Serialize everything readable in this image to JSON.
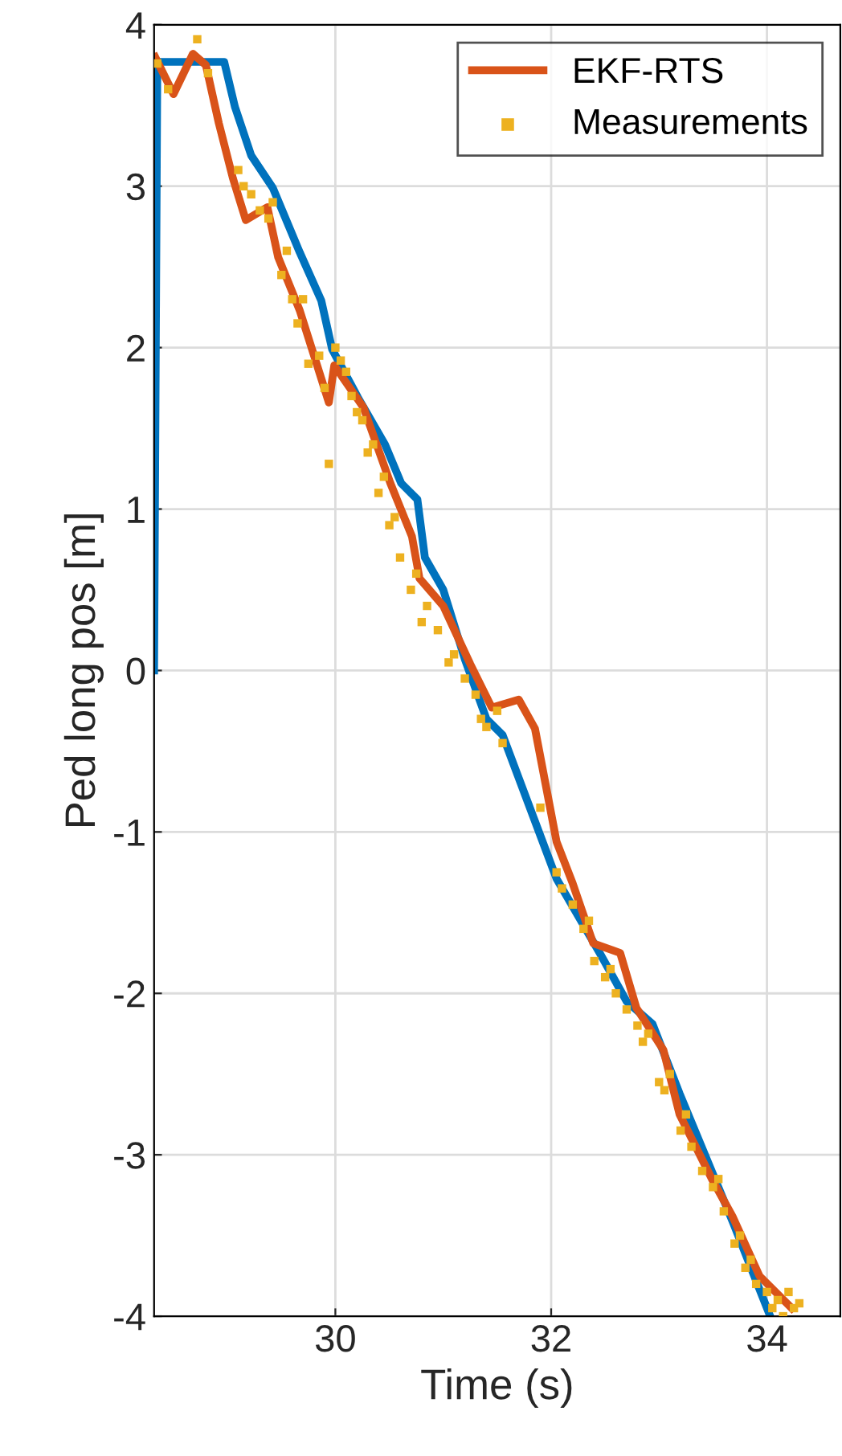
{
  "chart_data": {
    "type": "line",
    "xlabel": "Time (s)",
    "ylabel": "Ped long pos [m]",
    "xlim": [
      28.32,
      34.68
    ],
    "xticks": [
      30,
      32,
      34
    ],
    "ylim": [
      -4,
      4
    ],
    "yticks": [
      -4,
      -3,
      -2,
      -1,
      0,
      1,
      2,
      3,
      4
    ],
    "grid": true,
    "legend": "top right",
    "series": [
      {
        "color": "#0072bd",
        "x": [
          28.32,
          28.35,
          28.97,
          29.07,
          29.22,
          29.42,
          29.67,
          29.87,
          29.97,
          30.21,
          30.46,
          30.61,
          30.76,
          30.83,
          31.0,
          31.2,
          31.4,
          31.55,
          32.05,
          32.45,
          32.7,
          32.94,
          33.19,
          33.68,
          34.03
        ],
        "values": [
          0,
          3.77,
          3.77,
          3.49,
          3.19,
          2.99,
          2.59,
          2.29,
          1.99,
          1.69,
          1.4,
          1.16,
          1.06,
          0.7,
          0.5,
          0.07,
          -0.3,
          -0.4,
          -1.29,
          -1.75,
          -2.05,
          -2.19,
          -2.62,
          -3.41,
          -4.0
        ]
      },
      {
        "name": "EKF-RTS",
        "color": "#d95319",
        "x": [
          28.33,
          28.5,
          28.68,
          28.8,
          28.92,
          29.05,
          29.17,
          29.37,
          29.47,
          29.67,
          29.94,
          29.99,
          30.26,
          30.51,
          30.71,
          30.78,
          31.0,
          31.25,
          31.45,
          31.7,
          31.85,
          32.05,
          32.2,
          32.39,
          32.64,
          32.79,
          33.04,
          33.19,
          33.49,
          33.68,
          33.93,
          34.23
        ],
        "values": [
          3.8,
          3.57,
          3.82,
          3.75,
          3.39,
          3.05,
          2.79,
          2.87,
          2.56,
          2.23,
          1.66,
          1.89,
          1.63,
          1.16,
          0.83,
          0.57,
          0.4,
          0.04,
          -0.23,
          -0.18,
          -0.36,
          -1.06,
          -1.32,
          -1.69,
          -1.75,
          -2.09,
          -2.35,
          -2.75,
          -3.15,
          -3.38,
          -3.75,
          -3.95
        ]
      },
      {
        "name": "Measurements",
        "type": "scatter",
        "marker": "square",
        "color": "#edb120",
        "x": [
          28.35,
          28.45,
          28.72,
          28.82,
          29.1,
          29.15,
          29.22,
          29.3,
          29.38,
          29.42,
          29.5,
          29.55,
          29.6,
          29.65,
          29.7,
          29.75,
          29.85,
          29.9,
          29.94,
          30.0,
          30.05,
          30.1,
          30.15,
          30.2,
          30.25,
          30.3,
          30.35,
          30.4,
          30.45,
          30.5,
          30.55,
          30.6,
          30.7,
          30.75,
          30.8,
          30.85,
          30.95,
          31.05,
          31.1,
          31.2,
          31.3,
          31.35,
          31.4,
          31.5,
          31.55,
          31.9,
          32.05,
          32.1,
          32.2,
          32.3,
          32.35,
          32.4,
          32.5,
          32.55,
          32.6,
          32.7,
          32.8,
          32.85,
          32.9,
          33.0,
          33.05,
          33.1,
          33.2,
          33.25,
          33.3,
          33.4,
          33.5,
          33.55,
          33.6,
          33.7,
          33.75,
          33.8,
          33.85,
          33.9,
          34.0,
          34.05,
          34.1,
          34.15,
          34.2,
          34.25,
          34.3
        ],
        "values": [
          3.76,
          3.6,
          3.91,
          3.7,
          3.1,
          3.0,
          2.95,
          2.85,
          2.8,
          2.9,
          2.45,
          2.6,
          2.3,
          2.15,
          2.3,
          1.9,
          1.95,
          1.75,
          1.28,
          2.0,
          1.92,
          1.85,
          1.7,
          1.6,
          1.55,
          1.35,
          1.4,
          1.1,
          1.2,
          0.9,
          0.95,
          0.7,
          0.5,
          0.6,
          0.3,
          0.4,
          0.25,
          0.05,
          0.1,
          -0.05,
          -0.15,
          -0.3,
          -0.35,
          -0.25,
          -0.45,
          -0.85,
          -1.25,
          -1.35,
          -1.45,
          -1.6,
          -1.55,
          -1.8,
          -1.9,
          -1.85,
          -2.0,
          -2.1,
          -2.2,
          -2.3,
          -2.25,
          -2.55,
          -2.6,
          -2.5,
          -2.85,
          -2.75,
          -2.95,
          -3.1,
          -3.2,
          -3.15,
          -3.35,
          -3.55,
          -3.5,
          -3.7,
          -3.65,
          -3.8,
          -3.85,
          -3.95,
          -3.9,
          -4.0,
          -3.85,
          -3.95,
          -3.92
        ]
      }
    ]
  }
}
